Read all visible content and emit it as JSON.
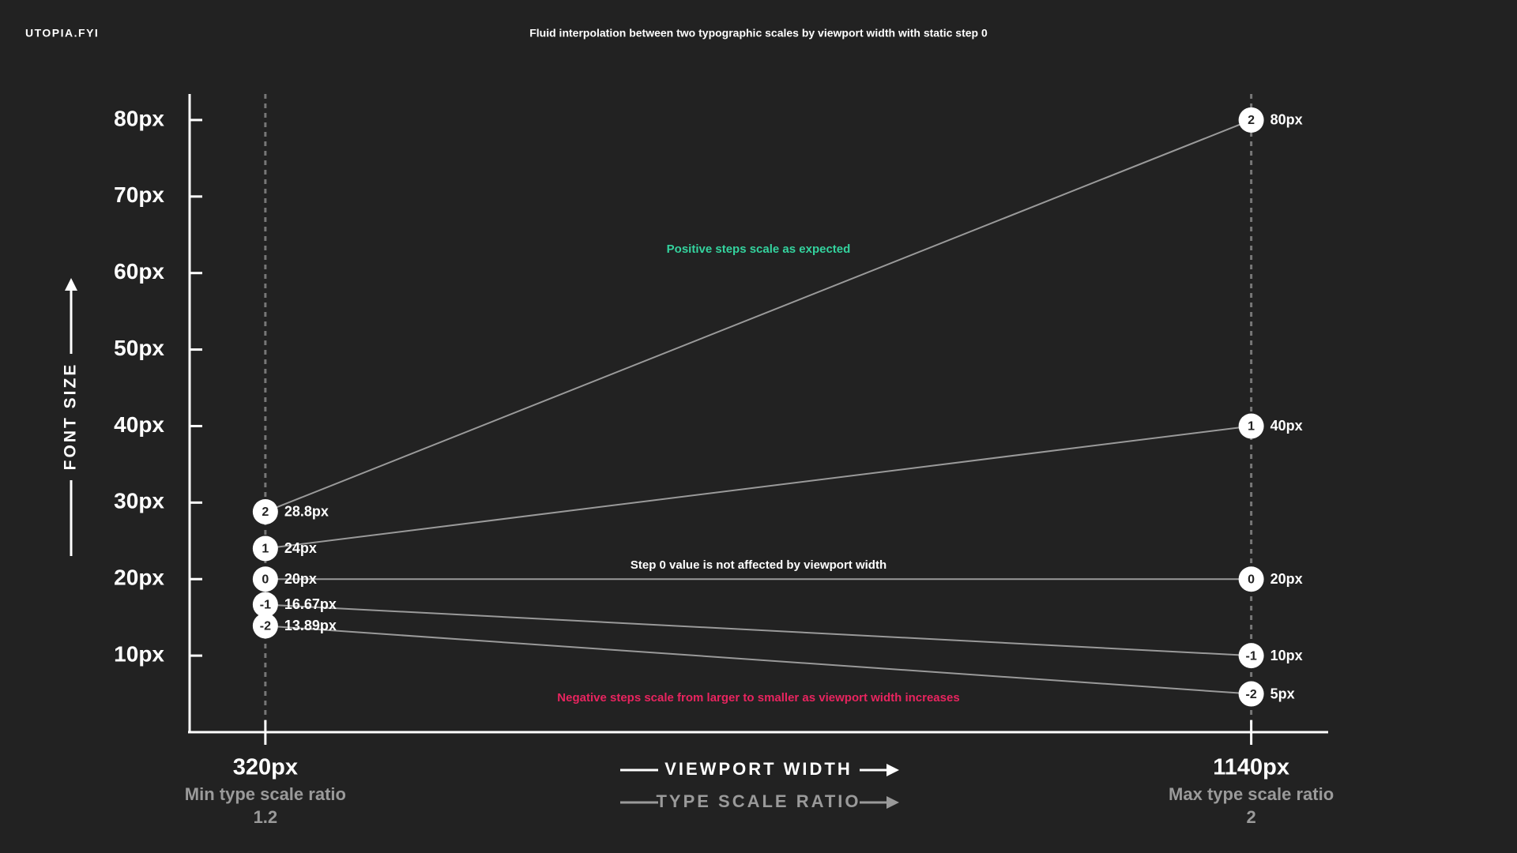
{
  "chart_data": {
    "type": "line",
    "brand": "UTOPIA.FYI",
    "title": "Fluid interpolation between two typographic scales by viewport width with static step 0",
    "y_label": "FONT SIZE",
    "x_label": "VIEWPORT WIDTH",
    "x_label_secondary": "TYPE SCALE RATIO",
    "x": [
      320,
      1140
    ],
    "xlim": [
      257,
      1204
    ],
    "xticks": [
      {
        "value": 320,
        "label": "320px"
      },
      {
        "value": 1140,
        "label": "1140px"
      }
    ],
    "ratios": [
      {
        "label": "Min type scale ratio",
        "value": 1.2
      },
      {
        "label": "Max type scale ratio",
        "value": 2
      }
    ],
    "ylim": [
      0,
      83.4
    ],
    "yticks": [
      {
        "value": 10,
        "label": "10px"
      },
      {
        "value": 20,
        "label": "20px"
      },
      {
        "value": 30,
        "label": "30px"
      },
      {
        "value": 40,
        "label": "40px"
      },
      {
        "value": 50,
        "label": "50px"
      },
      {
        "value": 60,
        "label": "60px"
      },
      {
        "value": 70,
        "label": "70px"
      },
      {
        "value": 80,
        "label": "80px"
      }
    ],
    "color": "#9a9a9a",
    "series": [
      {
        "name": "2",
        "values": [
          28.8,
          80
        ],
        "value_labels": [
          "28.8px",
          "80px"
        ]
      },
      {
        "name": "1",
        "values": [
          24,
          40
        ],
        "value_labels": [
          "24px",
          "40px"
        ]
      },
      {
        "name": "0",
        "values": [
          20,
          20
        ],
        "value_labels": [
          "20px",
          "20px"
        ]
      },
      {
        "name": "-1",
        "values": [
          16.67,
          10
        ],
        "value_labels": [
          "16.67px",
          "10px"
        ]
      },
      {
        "name": "-2",
        "values": [
          13.89,
          5
        ],
        "value_labels": [
          "13.89px",
          "5px"
        ]
      }
    ],
    "annotations": [
      {
        "text": "Positive steps scale as expected",
        "color": "#34d39e"
      },
      {
        "text": "Step 0 value is not affected by viewport width",
        "color": "#ffffff"
      },
      {
        "text": "Negative steps scale from larger to smaller as viewport width increases",
        "color": "#e8245f"
      }
    ]
  }
}
